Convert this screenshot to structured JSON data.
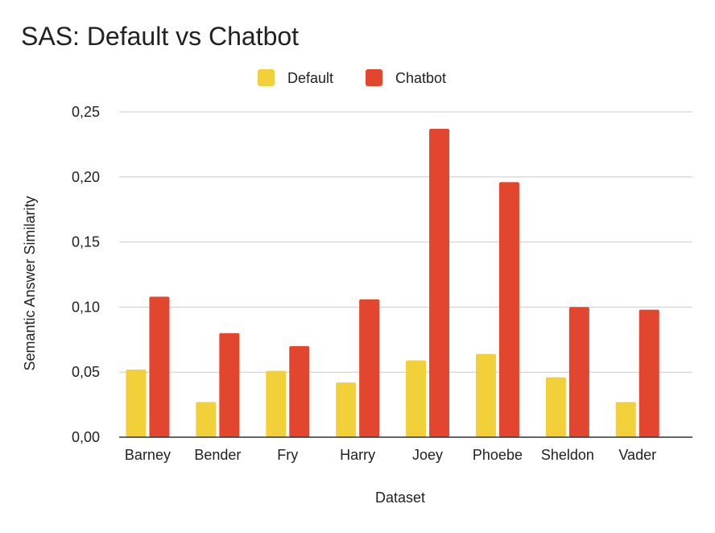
{
  "chart_data": {
    "type": "bar",
    "title": "SAS: Default vs Chatbot",
    "xlabel": "Dataset",
    "ylabel": "Semantic Answer Similarity",
    "categories": [
      "Barney",
      "Bender",
      "Fry",
      "Harry",
      "Joey",
      "Phoebe",
      "Sheldon",
      "Vader"
    ],
    "series": [
      {
        "name": "Default",
        "color": "#f1d03a",
        "values": [
          0.052,
          0.027,
          0.051,
          0.042,
          0.059,
          0.064,
          0.046,
          0.027
        ]
      },
      {
        "name": "Chatbot",
        "color": "#e2462e",
        "values": [
          0.108,
          0.08,
          0.07,
          0.106,
          0.237,
          0.196,
          0.1,
          0.098
        ]
      }
    ],
    "ylim": [
      0,
      0.25
    ],
    "yticks": [
      "0,00",
      "0,05",
      "0,10",
      "0,15",
      "0,20",
      "0,25"
    ],
    "grid": true,
    "legend_position": "top"
  }
}
